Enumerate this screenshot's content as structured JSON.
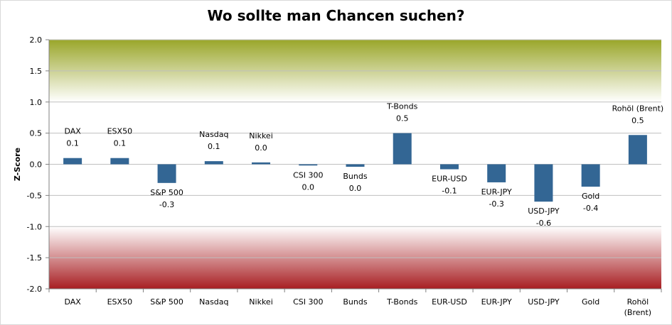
{
  "chart_data": {
    "type": "bar",
    "title": "Wo sollte man Chancen suchen?",
    "ylabel": "Z-Score",
    "xlabel": "",
    "ylim": [
      -2.0,
      2.0
    ],
    "yticks": [
      "2.0",
      "1.5",
      "1.0",
      "0.5",
      "0.0",
      "-0.5",
      "-1.0",
      "-1.5",
      "-2.0"
    ],
    "grid": true,
    "categories": [
      "DAX",
      "ESX50",
      "S&P 500",
      "Nasdaq",
      "Nikkei",
      "CSI 300",
      "Bunds",
      "T-Bonds",
      "EUR-USD",
      "EUR-JPY",
      "USD-JPY",
      "Gold",
      "Rohöl (Brent)"
    ],
    "category_labels": [
      [
        "DAX"
      ],
      [
        "ESX50"
      ],
      [
        "S&P 500"
      ],
      [
        "Nasdaq"
      ],
      [
        "Nikkei"
      ],
      [
        "CSI 300"
      ],
      [
        "Bunds"
      ],
      [
        "T-Bonds"
      ],
      [
        "EUR-USD"
      ],
      [
        "EUR-JPY"
      ],
      [
        "USD-JPY"
      ],
      [
        "Gold"
      ],
      [
        "Rohöl",
        "(Brent)"
      ]
    ],
    "values": [
      0.1,
      0.1,
      -0.3,
      0.05,
      0.03,
      -0.02,
      -0.04,
      0.5,
      -0.08,
      -0.29,
      -0.6,
      -0.36,
      0.47
    ],
    "data_labels": [
      "0.1",
      "0.1",
      "-0.3",
      "0.1",
      "0.0",
      "0.0",
      "0.0",
      "0.5",
      "-0.1",
      "-0.3",
      "-0.6",
      "-0.4",
      "0.5"
    ],
    "bar_color": "#336694",
    "bands": {
      "top_color": "#9aa62a",
      "bottom_color": "#a81e22",
      "middle_color": "#ffffff"
    }
  }
}
